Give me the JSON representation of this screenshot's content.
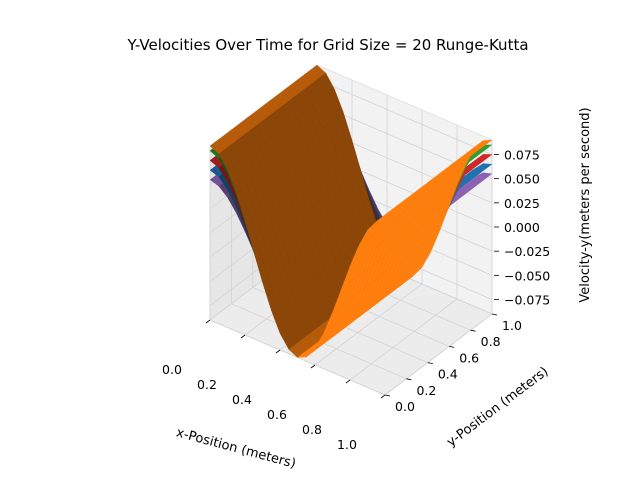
{
  "chart_data": {
    "type": "surface3d",
    "title": "Y-Velocities Over Time for Grid Size = 20 Runge-Kutta",
    "xlabel": "x-Position (meters)",
    "ylabel": "y-Position (meters)",
    "zlabel": "Velocity-y(meters per second)",
    "xlim": [
      0,
      1
    ],
    "ylim": [
      0,
      1
    ],
    "zlim": [
      -0.09,
      0.09
    ],
    "x_ticks": [
      "0.0",
      "0.2",
      "0.4",
      "0.6",
      "0.8",
      "1.0"
    ],
    "y_ticks": [
      "0.0",
      "0.2",
      "0.4",
      "0.6",
      "0.8",
      "1.0"
    ],
    "z_ticks": [
      "0.075",
      "0.050",
      "0.025",
      "0.000",
      "−0.025",
      "−0.050",
      "−0.075"
    ],
    "z_tick_values": [
      0.075,
      0.05,
      0.025,
      0,
      -0.025,
      -0.05,
      -0.075
    ],
    "grid": true,
    "surface_function": "v_y = A * cos(2*pi*x), constant in y",
    "series": [
      {
        "amplitude": 0.055,
        "color": "#9467bd"
      },
      {
        "amplitude": 0.065,
        "color": "#1f77b4"
      },
      {
        "amplitude": 0.075,
        "color": "#d62728"
      },
      {
        "amplitude": 0.085,
        "color": "#2ca02c"
      },
      {
        "amplitude": 0.09,
        "color": "#ff7f0e"
      }
    ]
  }
}
